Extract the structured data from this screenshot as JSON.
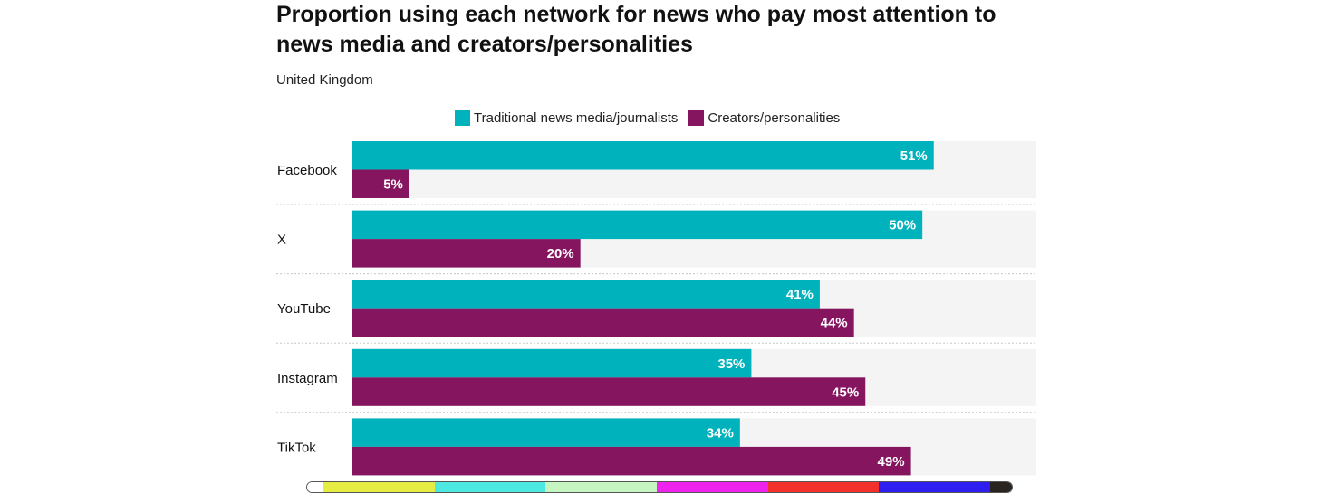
{
  "chart_data": {
    "type": "bar",
    "orientation": "horizontal",
    "title": "Proportion using each network for news who pay most attention to news media and creators/personalities",
    "subtitle": "United Kingdom",
    "categories": [
      "Facebook",
      "X",
      "YouTube",
      "Instagram",
      "TikTok"
    ],
    "series": [
      {
        "name": "Traditional news media/journalists",
        "color": "#00b2bc",
        "values": [
          51,
          50,
          41,
          35,
          34
        ]
      },
      {
        "name": "Creators/personalities",
        "color": "#84155e",
        "values": [
          5,
          20,
          44,
          45,
          49
        ]
      }
    ],
    "value_suffix": "%",
    "xlim": [
      0,
      60
    ],
    "grid": false,
    "legend_position": "top-center"
  },
  "scrollbar": {
    "colors": [
      "#ffffff",
      "#e5ed42",
      "#4de8df",
      "#c5f5c0",
      "#ee24ee",
      "#f2302c",
      "#2e1ff0",
      "#2a2420"
    ]
  }
}
